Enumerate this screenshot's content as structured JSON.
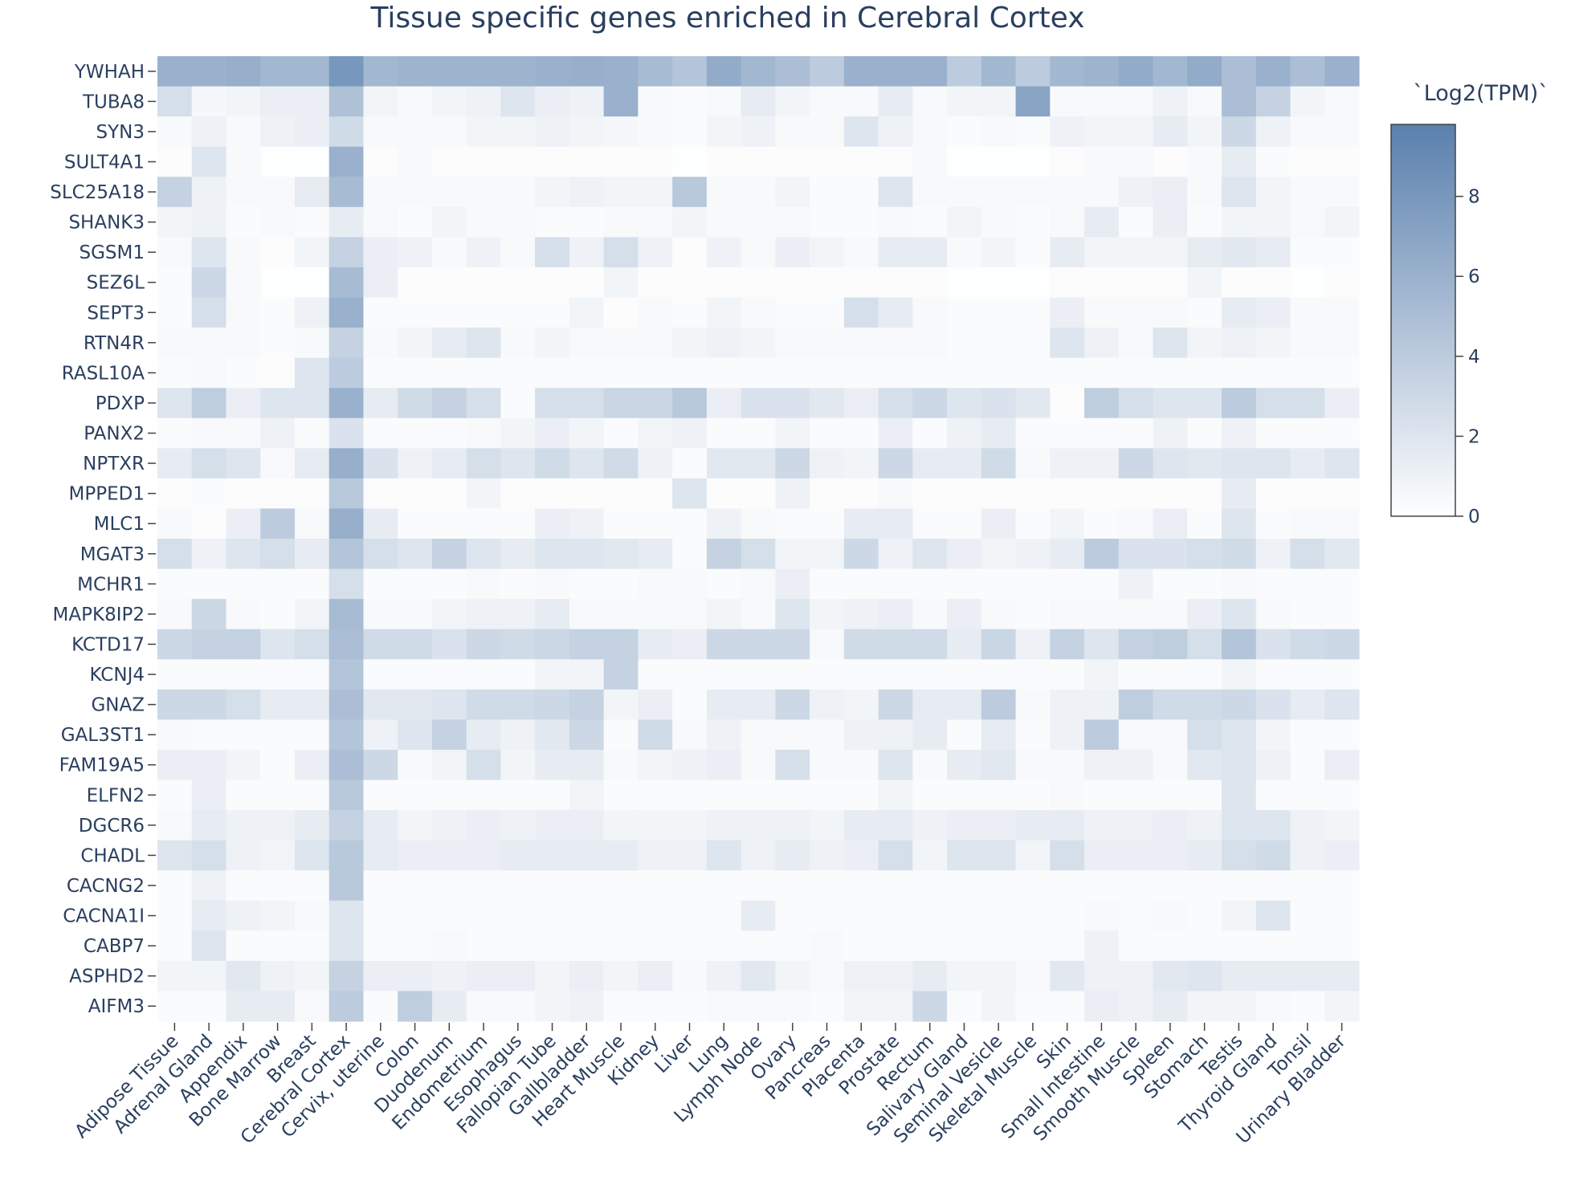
{
  "chart_data": {
    "type": "heatmap",
    "title": "Tissue specific genes enriched in Cerebral Cortex",
    "colorbar_title": "`Log2(TPM)`",
    "colorbar_ticks": [
      0,
      2,
      4,
      6,
      8
    ],
    "zlim": [
      0,
      9.8
    ],
    "colorscale": [
      "#ffffff",
      "#5a80ad"
    ],
    "x": [
      "Adipose Tissue",
      "Adrenal Gland",
      "Appendix",
      "Bone Marrow",
      "Breast",
      "Cerebral Cortex",
      "Cervix, uterine",
      "Colon",
      "Duodenum",
      "Endometrium",
      "Esophagus",
      "Fallopian Tube",
      "Gallbladder",
      "Heart Muscle",
      "Kidney",
      "Liver",
      "Lung",
      "Lymph Node",
      "Ovary",
      "Pancreas",
      "Placenta",
      "Prostate",
      "Rectum",
      "Salivary Gland",
      "Seminal Vesicle",
      "Skeletal Muscle",
      "Skin",
      "Small Intestine",
      "Smooth Muscle",
      "Spleen",
      "Stomach",
      "Testis",
      "Thyroid Gland",
      "Tonsil",
      "Urinary Bladder"
    ],
    "y": [
      "YWHAH",
      "TUBA8",
      "SYN3",
      "SULT4A1",
      "SLC25A18",
      "SHANK3",
      "SGSM1",
      "SEZ6L",
      "SEPT3",
      "RTN4R",
      "RASL10A",
      "PDXP",
      "PANX2",
      "NPTXR",
      "MPPED1",
      "MLC1",
      "MGAT3",
      "MCHR1",
      "MAPK8IP2",
      "KCTD17",
      "KCNJ4",
      "GNAZ",
      "GAL3ST1",
      "FAM19A5",
      "ELFN2",
      "DGCR6",
      "CHADL",
      "CACNG2",
      "CACNA1I",
      "CABP7",
      "ASPHD2",
      "AIFM3"
    ],
    "z": [
      [
        6.0,
        6.0,
        6.2,
        5.5,
        5.5,
        8.0,
        5.5,
        5.8,
        5.8,
        5.8,
        5.8,
        6.0,
        6.2,
        6.0,
        5.2,
        4.5,
        6.5,
        5.5,
        5.0,
        4.0,
        6.0,
        6.0,
        6.0,
        4.0,
        5.5,
        4.0,
        5.5,
        5.8,
        6.5,
        5.5,
        6.5,
        5.0,
        6.0,
        5.0,
        6.0
      ],
      [
        2.5,
        0.6,
        0.8,
        1.2,
        1.2,
        4.8,
        0.8,
        0.5,
        0.8,
        1.0,
        2.0,
        1.2,
        1.0,
        6.0,
        0.5,
        0.3,
        0.5,
        1.5,
        0.8,
        0.5,
        0.5,
        1.5,
        0.5,
        0.8,
        0.8,
        7.0,
        0.5,
        0.5,
        0.5,
        1.0,
        0.5,
        5.0,
        3.5,
        0.8,
        0.5
      ],
      [
        0.5,
        1.0,
        0.5,
        1.0,
        1.2,
        2.8,
        0.5,
        0.5,
        0.5,
        0.8,
        0.8,
        1.0,
        0.8,
        0.6,
        0.5,
        0.3,
        0.8,
        1.0,
        0.5,
        0.5,
        2.0,
        1.0,
        0.5,
        0.3,
        0.5,
        0.3,
        1.0,
        0.8,
        0.8,
        1.5,
        0.8,
        3.0,
        1.0,
        0.5,
        0.5
      ],
      [
        0.2,
        2.0,
        0.5,
        0.1,
        0.1,
        6.0,
        0.2,
        0.5,
        0.2,
        0.2,
        0.2,
        0.2,
        0.2,
        0.2,
        0.2,
        0.1,
        0.2,
        0.2,
        0.2,
        0.2,
        0.2,
        0.2,
        0.5,
        0.1,
        0.1,
        0.1,
        0.2,
        0.5,
        0.5,
        0.2,
        0.5,
        1.5,
        0.3,
        0.2,
        0.2
      ],
      [
        3.5,
        1.0,
        0.5,
        0.5,
        1.5,
        5.2,
        0.5,
        0.5,
        0.5,
        0.5,
        0.5,
        0.8,
        1.0,
        0.8,
        0.8,
        4.2,
        0.5,
        0.5,
        0.8,
        0.3,
        0.3,
        2.0,
        0.5,
        0.5,
        0.5,
        0.5,
        0.5,
        0.5,
        1.0,
        1.2,
        0.5,
        2.0,
        0.8,
        0.5,
        0.5
      ],
      [
        0.8,
        1.0,
        0.3,
        0.5,
        0.3,
        1.5,
        0.5,
        0.3,
        0.8,
        0.5,
        0.5,
        0.3,
        0.3,
        0.5,
        0.5,
        0.8,
        0.5,
        0.5,
        0.5,
        0.3,
        0.3,
        0.5,
        0.3,
        0.8,
        0.5,
        0.3,
        0.5,
        1.5,
        0.3,
        1.2,
        0.3,
        0.8,
        0.8,
        0.5,
        0.8
      ],
      [
        0.5,
        2.0,
        0.5,
        0.2,
        0.8,
        3.5,
        1.2,
        1.0,
        0.5,
        1.0,
        0.5,
        2.5,
        1.0,
        2.5,
        1.0,
        0.2,
        1.0,
        0.5,
        1.2,
        0.8,
        0.5,
        1.5,
        1.5,
        0.5,
        0.8,
        0.3,
        1.5,
        0.8,
        0.8,
        0.8,
        1.5,
        1.8,
        1.5,
        0.3,
        0.3
      ],
      [
        0.3,
        3.0,
        0.5,
        0.1,
        0.1,
        5.2,
        1.2,
        0.2,
        0.2,
        0.2,
        0.2,
        0.2,
        0.2,
        0.8,
        0.2,
        0.2,
        0.2,
        0.2,
        0.2,
        0.2,
        0.2,
        0.2,
        0.2,
        0.1,
        0.1,
        0.1,
        0.2,
        0.2,
        0.2,
        0.2,
        0.8,
        0.2,
        0.2,
        0.1,
        0.2
      ],
      [
        0.3,
        2.5,
        0.5,
        0.3,
        1.0,
        6.0,
        0.3,
        0.3,
        0.3,
        0.3,
        0.3,
        0.3,
        0.8,
        0.2,
        0.5,
        0.3,
        0.8,
        0.5,
        0.3,
        0.3,
        2.5,
        1.5,
        0.5,
        0.3,
        0.3,
        0.3,
        1.2,
        0.5,
        0.5,
        0.5,
        0.3,
        1.5,
        1.2,
        0.5,
        0.5
      ],
      [
        0.5,
        0.5,
        0.5,
        0.3,
        0.5,
        3.5,
        0.5,
        0.8,
        1.5,
        2.0,
        0.5,
        0.8,
        0.5,
        0.5,
        0.5,
        0.8,
        1.0,
        0.8,
        0.5,
        0.5,
        0.5,
        0.5,
        0.5,
        0.3,
        0.3,
        0.3,
        2.0,
        1.0,
        0.5,
        2.0,
        0.8,
        1.0,
        0.8,
        0.5,
        0.5
      ],
      [
        0.3,
        0.5,
        0.3,
        0.2,
        2.0,
        4.0,
        0.3,
        0.3,
        0.3,
        0.3,
        0.3,
        0.3,
        0.3,
        0.3,
        0.3,
        0.3,
        0.3,
        0.3,
        0.3,
        0.3,
        0.3,
        0.3,
        0.3,
        0.3,
        0.3,
        0.3,
        0.3,
        0.3,
        0.3,
        0.3,
        0.3,
        0.3,
        0.3,
        0.3,
        0.3
      ],
      [
        2.0,
        3.8,
        1.2,
        2.0,
        2.0,
        6.0,
        1.5,
        2.8,
        3.5,
        2.5,
        0.3,
        2.5,
        2.5,
        3.2,
        3.2,
        4.2,
        1.2,
        2.2,
        2.2,
        1.8,
        1.2,
        2.5,
        3.0,
        2.0,
        2.2,
        1.8,
        0.2,
        3.8,
        2.5,
        2.0,
        2.0,
        4.0,
        2.5,
        2.5,
        1.2
      ],
      [
        0.3,
        0.5,
        0.5,
        1.0,
        0.3,
        2.2,
        0.3,
        0.3,
        0.3,
        0.5,
        0.8,
        1.2,
        0.8,
        0.3,
        0.8,
        1.0,
        0.3,
        0.3,
        0.8,
        0.3,
        0.3,
        1.2,
        0.3,
        1.0,
        1.5,
        0.3,
        0.3,
        0.3,
        0.3,
        1.0,
        0.3,
        1.0,
        0.3,
        0.3,
        0.3
      ],
      [
        1.5,
        2.5,
        2.0,
        0.5,
        1.5,
        6.2,
        2.2,
        1.0,
        1.5,
        2.5,
        2.0,
        2.8,
        2.0,
        2.8,
        1.0,
        0.3,
        1.8,
        1.8,
        3.0,
        1.0,
        0.8,
        3.0,
        1.5,
        1.5,
        2.8,
        0.5,
        1.0,
        1.0,
        3.0,
        2.0,
        1.8,
        2.0,
        2.0,
        1.5,
        2.0
      ],
      [
        0.2,
        0.3,
        0.2,
        0.2,
        0.2,
        4.2,
        0.2,
        0.2,
        0.2,
        0.8,
        0.2,
        0.2,
        0.2,
        0.2,
        0.2,
        2.0,
        0.2,
        0.2,
        1.0,
        0.2,
        0.2,
        0.5,
        0.2,
        0.2,
        0.2,
        0.2,
        0.2,
        0.2,
        0.2,
        0.2,
        0.2,
        1.5,
        0.2,
        0.2,
        0.2
      ],
      [
        0.5,
        0.2,
        1.2,
        4.0,
        0.5,
        6.2,
        1.5,
        0.3,
        0.3,
        0.3,
        0.3,
        1.2,
        1.0,
        0.3,
        0.3,
        0.3,
        1.0,
        0.5,
        0.3,
        0.3,
        1.5,
        1.5,
        0.3,
        0.3,
        1.2,
        0.3,
        0.8,
        0.3,
        0.5,
        1.2,
        0.3,
        2.0,
        0.3,
        0.5,
        0.5
      ],
      [
        2.5,
        1.0,
        2.0,
        2.5,
        1.5,
        4.5,
        2.5,
        2.0,
        3.5,
        2.0,
        1.5,
        2.0,
        2.0,
        1.8,
        1.5,
        0.3,
        3.5,
        2.5,
        0.8,
        0.8,
        3.0,
        1.0,
        2.0,
        1.2,
        0.8,
        1.0,
        1.5,
        4.0,
        2.2,
        2.2,
        2.5,
        2.8,
        1.0,
        2.5,
        1.8
      ],
      [
        0.3,
        0.3,
        0.3,
        0.3,
        0.3,
        2.5,
        0.3,
        0.3,
        0.3,
        0.5,
        0.3,
        0.5,
        0.3,
        0.3,
        0.5,
        0.5,
        0.3,
        0.5,
        1.2,
        0.3,
        0.3,
        0.3,
        0.3,
        0.3,
        0.3,
        0.3,
        0.3,
        0.3,
        1.0,
        0.3,
        0.3,
        0.5,
        0.3,
        0.3,
        0.3
      ],
      [
        0.5,
        3.0,
        0.5,
        0.3,
        0.8,
        5.2,
        0.5,
        0.5,
        0.8,
        1.0,
        1.0,
        1.5,
        0.5,
        0.5,
        0.5,
        0.5,
        0.8,
        0.5,
        2.0,
        0.8,
        1.0,
        1.2,
        0.5,
        1.2,
        0.5,
        0.3,
        0.5,
        0.5,
        0.5,
        0.5,
        1.2,
        2.0,
        0.5,
        0.3,
        0.3
      ],
      [
        3.0,
        3.5,
        3.5,
        2.0,
        2.5,
        5.0,
        2.8,
        2.8,
        2.2,
        3.0,
        2.8,
        3.0,
        3.5,
        3.5,
        1.5,
        1.2,
        3.0,
        3.0,
        3.0,
        0.5,
        2.8,
        2.8,
        2.8,
        1.5,
        3.2,
        1.0,
        3.5,
        2.0,
        3.5,
        3.8,
        2.5,
        4.5,
        2.2,
        2.8,
        3.0
      ],
      [
        0.3,
        0.3,
        0.3,
        0.3,
        0.3,
        4.5,
        0.3,
        0.3,
        0.3,
        0.3,
        0.3,
        0.8,
        0.8,
        3.5,
        0.3,
        0.3,
        0.3,
        0.3,
        0.3,
        0.3,
        0.3,
        0.3,
        0.3,
        0.3,
        0.3,
        0.3,
        0.3,
        0.8,
        0.3,
        0.3,
        0.3,
        0.8,
        0.3,
        0.3,
        0.3
      ],
      [
        3.0,
        3.0,
        2.5,
        1.5,
        1.5,
        5.0,
        1.8,
        1.8,
        2.0,
        2.8,
        2.8,
        3.0,
        3.5,
        0.8,
        1.2,
        0.3,
        1.5,
        1.5,
        3.0,
        1.0,
        0.8,
        3.0,
        1.5,
        1.5,
        4.0,
        0.5,
        1.0,
        1.0,
        3.8,
        2.8,
        2.8,
        3.0,
        2.2,
        1.5,
        2.0
      ],
      [
        0.5,
        0.3,
        0.3,
        0.3,
        0.3,
        4.5,
        1.0,
        2.0,
        3.5,
        1.5,
        1.0,
        1.8,
        3.0,
        0.3,
        2.8,
        0.5,
        1.0,
        0.5,
        0.5,
        0.5,
        1.0,
        1.0,
        1.5,
        0.3,
        1.5,
        0.3,
        1.0,
        4.0,
        0.5,
        0.5,
        2.5,
        2.0,
        0.8,
        0.3,
        0.3
      ],
      [
        1.2,
        1.2,
        0.8,
        0.3,
        1.2,
        5.0,
        3.0,
        0.5,
        0.8,
        2.5,
        0.8,
        1.5,
        1.5,
        0.5,
        0.8,
        1.0,
        1.2,
        0.5,
        2.5,
        0.5,
        0.5,
        2.0,
        0.5,
        1.5,
        1.8,
        0.5,
        0.5,
        1.0,
        1.0,
        0.5,
        1.8,
        2.0,
        1.0,
        0.3,
        1.2
      ],
      [
        0.3,
        1.2,
        0.3,
        0.3,
        0.3,
        4.2,
        0.3,
        0.3,
        0.3,
        0.3,
        0.3,
        0.3,
        0.8,
        0.3,
        0.3,
        0.3,
        0.3,
        0.3,
        0.3,
        0.3,
        0.3,
        0.8,
        0.3,
        0.3,
        0.3,
        0.3,
        0.5,
        0.3,
        0.3,
        0.3,
        0.3,
        2.0,
        0.3,
        0.3,
        0.3
      ],
      [
        0.5,
        1.5,
        1.0,
        1.0,
        1.5,
        3.5,
        1.5,
        0.8,
        1.0,
        1.2,
        1.0,
        1.2,
        1.2,
        0.8,
        0.8,
        0.8,
        1.0,
        1.0,
        1.0,
        0.8,
        1.5,
        1.5,
        1.0,
        1.2,
        1.2,
        1.5,
        1.5,
        1.0,
        1.0,
        1.2,
        1.0,
        2.0,
        2.0,
        1.0,
        0.8
      ],
      [
        2.0,
        2.5,
        1.0,
        0.8,
        2.0,
        4.2,
        1.5,
        1.2,
        1.2,
        1.2,
        1.5,
        1.5,
        1.5,
        1.5,
        1.0,
        1.0,
        2.0,
        1.0,
        1.5,
        1.0,
        1.2,
        2.5,
        0.8,
        2.0,
        2.0,
        0.8,
        2.5,
        1.2,
        1.2,
        1.2,
        1.5,
        2.5,
        2.8,
        1.0,
        1.2
      ],
      [
        0.3,
        1.0,
        0.3,
        0.3,
        0.3,
        4.2,
        0.3,
        0.3,
        0.3,
        0.3,
        0.3,
        0.3,
        0.3,
        0.3,
        0.3,
        0.3,
        0.3,
        0.3,
        0.3,
        0.3,
        0.3,
        0.3,
        0.3,
        0.3,
        0.3,
        0.3,
        0.3,
        0.3,
        0.3,
        0.3,
        0.3,
        0.3,
        0.3,
        0.3,
        0.3
      ],
      [
        0.3,
        1.5,
        1.0,
        0.8,
        0.5,
        2.0,
        0.3,
        0.3,
        0.3,
        0.3,
        0.3,
        0.3,
        0.3,
        0.3,
        0.3,
        0.3,
        0.3,
        1.5,
        0.3,
        0.3,
        0.3,
        0.3,
        0.3,
        0.3,
        0.3,
        0.3,
        0.3,
        0.5,
        0.3,
        0.5,
        0.3,
        0.8,
        2.0,
        0.3,
        0.3
      ],
      [
        0.3,
        2.0,
        0.3,
        0.3,
        0.3,
        2.0,
        0.3,
        0.3,
        0.5,
        0.3,
        0.3,
        0.3,
        0.3,
        0.3,
        0.3,
        0.3,
        0.3,
        0.3,
        0.3,
        0.5,
        0.3,
        0.3,
        0.3,
        0.3,
        0.3,
        0.3,
        0.3,
        1.0,
        0.3,
        0.3,
        0.3,
        0.3,
        0.3,
        0.3,
        0.3
      ],
      [
        0.8,
        0.8,
        1.8,
        1.0,
        0.8,
        3.5,
        1.2,
        1.2,
        1.0,
        1.2,
        1.2,
        0.8,
        1.2,
        0.8,
        1.2,
        0.5,
        1.0,
        1.8,
        0.8,
        0.5,
        1.0,
        1.0,
        1.5,
        0.8,
        0.8,
        0.5,
        1.8,
        1.0,
        1.0,
        1.8,
        2.0,
        1.5,
        1.5,
        1.5,
        1.5
      ],
      [
        0.3,
        0.3,
        1.5,
        1.5,
        0.5,
        4.0,
        0.3,
        3.8,
        1.5,
        0.5,
        0.5,
        0.8,
        1.0,
        0.3,
        0.3,
        0.3,
        0.5,
        0.5,
        0.5,
        0.3,
        0.8,
        0.8,
        3.0,
        0.3,
        0.8,
        0.3,
        0.3,
        1.2,
        1.0,
        1.5,
        0.8,
        0.8,
        0.5,
        0.3,
        0.8
      ]
    ]
  }
}
